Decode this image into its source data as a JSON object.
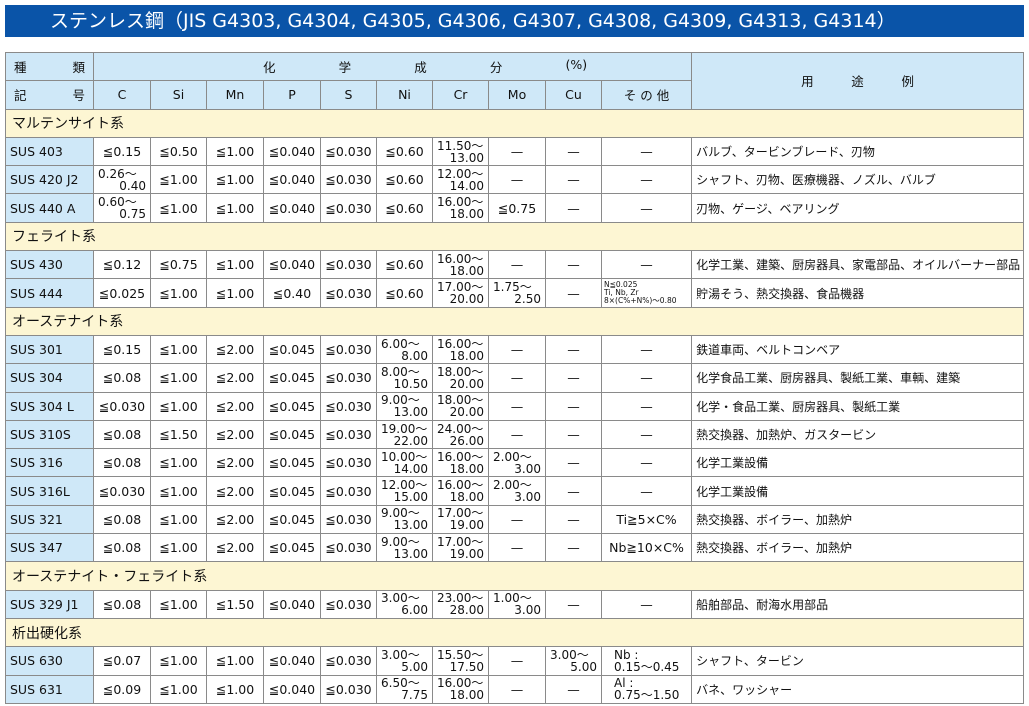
{
  "title": "ステンレス鋼（JIS G4303, G4304, G4305, G4306, G4307, G4308, G4309, G4313, G4314）",
  "colors": {
    "title_bg": "#0a54a8",
    "header_bg": "#cfe8f8",
    "group_bg": "#fdf6d3"
  },
  "header": {
    "type_label": [
      "種",
      "類"
    ],
    "symbol_label": [
      "記",
      "号"
    ],
    "chem_label": [
      "化",
      "学",
      "成",
      "分",
      "(%)"
    ],
    "columns": [
      "C",
      "Si",
      "Mn",
      "P",
      "S",
      "Ni",
      "Cr",
      "Mo",
      "Cu",
      "そ の 他"
    ],
    "usage_label": [
      "用",
      "途",
      "例"
    ]
  },
  "groups": [
    {
      "name": "マルテンサイト系",
      "rows": [
        {
          "grade": "SUS 403",
          "vals": [
            "≦0.15",
            "≦0.50",
            "≦1.00",
            "≦0.040",
            "≦0.030",
            "≦0.60",
            [
              "11.50〜",
              "13.00"
            ],
            "—",
            "—",
            "—"
          ],
          "use": "バルブ、タービンブレード、刃物"
        },
        {
          "grade": "SUS 420 J2",
          "vals": [
            [
              "0.26〜",
              "0.40"
            ],
            "≦1.00",
            "≦1.00",
            "≦0.040",
            "≦0.030",
            "≦0.60",
            [
              "12.00〜",
              "14.00"
            ],
            "—",
            "—",
            "—"
          ],
          "use": "シャフト、刃物、医療機器、ノズル、バルブ"
        },
        {
          "grade": "SUS 440 A",
          "vals": [
            [
              "0.60〜",
              "0.75"
            ],
            "≦1.00",
            "≦1.00",
            "≦0.040",
            "≦0.030",
            "≦0.60",
            [
              "16.00〜",
              "18.00"
            ],
            "≦0.75",
            "—",
            "—"
          ],
          "use": "刃物、ゲージ、ベアリング"
        }
      ]
    },
    {
      "name": "フェライト系",
      "rows": [
        {
          "grade": "SUS 430",
          "vals": [
            "≦0.12",
            "≦0.75",
            "≦1.00",
            "≦0.040",
            "≦0.030",
            "≦0.60",
            [
              "16.00〜",
              "18.00"
            ],
            "—",
            "—",
            "—"
          ],
          "use": "化学工業、建築、厨房器具、家電部品、オイルバーナー部品"
        },
        {
          "grade": "SUS 444",
          "vals": [
            "≦0.025",
            "≦1.00",
            "≦1.00",
            "≦0.40",
            "≦0.030",
            "≦0.60",
            [
              "17.00〜",
              "20.00"
            ],
            [
              "1.75〜",
              "2.50"
            ],
            "—",
            {
              "tiny": [
                "N≦0.025",
                "Ti, Nb, Zr",
                "8×(C%+N%)〜0.80"
              ]
            }
          ],
          "use": "貯湯そう、熱交換器、食品機器"
        }
      ]
    },
    {
      "name": "オーステナイト系",
      "rows": [
        {
          "grade": "SUS 301",
          "vals": [
            "≦0.15",
            "≦1.00",
            "≦2.00",
            "≦0.045",
            "≦0.030",
            [
              "6.00〜",
              "8.00"
            ],
            [
              "16.00〜",
              "18.00"
            ],
            "—",
            "—",
            "—"
          ],
          "use": "鉄道車両、ベルトコンベア"
        },
        {
          "grade": "SUS 304",
          "vals": [
            "≦0.08",
            "≦1.00",
            "≦2.00",
            "≦0.045",
            "≦0.030",
            [
              "8.00〜",
              "10.50"
            ],
            [
              "18.00〜",
              "20.00"
            ],
            "—",
            "—",
            "—"
          ],
          "use": "化学食品工業、厨房器具、製紙工業、車輌、建築"
        },
        {
          "grade": "SUS 304 L",
          "vals": [
            "≦0.030",
            "≦1.00",
            "≦2.00",
            "≦0.045",
            "≦0.030",
            [
              "9.00〜",
              "13.00"
            ],
            [
              "18.00〜",
              "20.00"
            ],
            "—",
            "—",
            "—"
          ],
          "use": "化学・食品工業、厨房器具、製紙工業"
        },
        {
          "grade": "SUS 310S",
          "vals": [
            "≦0.08",
            "≦1.50",
            "≦2.00",
            "≦0.045",
            "≦0.030",
            [
              "19.00〜",
              "22.00"
            ],
            [
              "24.00〜",
              "26.00"
            ],
            "—",
            "—",
            "—"
          ],
          "use": "熱交換器、加熱炉、ガスタービン"
        },
        {
          "grade": "SUS 316",
          "vals": [
            "≦0.08",
            "≦1.00",
            "≦2.00",
            "≦0.045",
            "≦0.030",
            [
              "10.00〜",
              "14.00"
            ],
            [
              "16.00〜",
              "18.00"
            ],
            [
              "2.00〜",
              "3.00"
            ],
            "—",
            "—"
          ],
          "use": "化学工業設備"
        },
        {
          "grade": "SUS 316L",
          "vals": [
            "≦0.030",
            "≦1.00",
            "≦2.00",
            "≦0.045",
            "≦0.030",
            [
              "12.00〜",
              "15.00"
            ],
            [
              "16.00〜",
              "18.00"
            ],
            [
              "2.00〜",
              "3.00"
            ],
            "—",
            "—"
          ],
          "use": "化学工業設備"
        },
        {
          "grade": "SUS 321",
          "vals": [
            "≦0.08",
            "≦1.00",
            "≦2.00",
            "≦0.045",
            "≦0.030",
            [
              "9.00〜",
              "13.00"
            ],
            [
              "17.00〜",
              "19.00"
            ],
            "—",
            "—",
            "Ti≧5×C%"
          ],
          "use": "熱交換器、ボイラー、加熱炉"
        },
        {
          "grade": "SUS 347",
          "vals": [
            "≦0.08",
            "≦1.00",
            "≦2.00",
            "≦0.045",
            "≦0.030",
            [
              "9.00〜",
              "13.00"
            ],
            [
              "17.00〜",
              "19.00"
            ],
            "—",
            "—",
            "Nb≧10×C%"
          ],
          "use": "熱交換器、ボイラー、加熱炉"
        }
      ]
    },
    {
      "name": "オーステナイト・フェライト系",
      "rows": [
        {
          "grade": "SUS 329 J1",
          "vals": [
            "≦0.08",
            "≦1.00",
            "≦1.50",
            "≦0.040",
            "≦0.030",
            [
              "3.00〜",
              "6.00"
            ],
            [
              "23.00〜",
              "28.00"
            ],
            [
              "1.00〜",
              "3.00"
            ],
            "—",
            "—"
          ],
          "use": "船舶部品、耐海水用部品"
        }
      ]
    },
    {
      "name": "析出硬化系",
      "rows": [
        {
          "grade": "SUS 630",
          "vals": [
            "≦0.07",
            "≦1.00",
            "≦1.00",
            "≦0.040",
            "≦0.030",
            [
              "3.00〜",
              "5.00"
            ],
            [
              "15.50〜",
              "17.50"
            ],
            "—",
            [
              "3.00〜",
              "5.00"
            ],
            {
              "two": [
                "Nb :",
                "0.15〜0.45"
              ]
            }
          ],
          "use": "シャフト、タービン"
        },
        {
          "grade": "SUS 631",
          "vals": [
            "≦0.09",
            "≦1.00",
            "≦1.00",
            "≦0.040",
            "≦0.030",
            [
              "6.50〜",
              "7.75"
            ],
            [
              "16.00〜",
              "18.00"
            ],
            "—",
            "—",
            {
              "two": [
                "Al :",
                "0.75〜1.50"
              ]
            }
          ],
          "use": "バネ、ワッシャー"
        }
      ]
    }
  ]
}
